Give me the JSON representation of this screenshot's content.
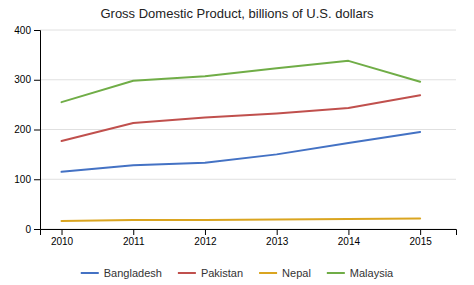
{
  "chart_data": {
    "type": "line",
    "title": "Gross Domestic Product, billions of U.S. dollars",
    "x": [
      2010,
      2011,
      2012,
      2013,
      2014,
      2015
    ],
    "series": [
      {
        "name": "Bangladesh",
        "color": "#4472c4",
        "values": [
          115,
          128,
          133,
          150,
          173,
          195
        ]
      },
      {
        "name": "Pakistan",
        "color": "#c0504d",
        "values": [
          177,
          213,
          224,
          232,
          243,
          269
        ]
      },
      {
        "name": "Nepal",
        "color": "#daa520",
        "values": [
          16,
          18,
          18,
          19,
          20,
          21
        ]
      },
      {
        "name": "Malaysia",
        "color": "#70ad47",
        "values": [
          255,
          298,
          307,
          323,
          338,
          296
        ]
      }
    ],
    "xlim": [
      2009.7,
      2015.5
    ],
    "xticks": [
      2010,
      2011,
      2012,
      2013,
      2014,
      2015
    ],
    "ylim": [
      0,
      400
    ],
    "yticks": [
      0,
      100,
      200,
      300,
      400
    ],
    "grid": true,
    "legend": "bottom"
  }
}
